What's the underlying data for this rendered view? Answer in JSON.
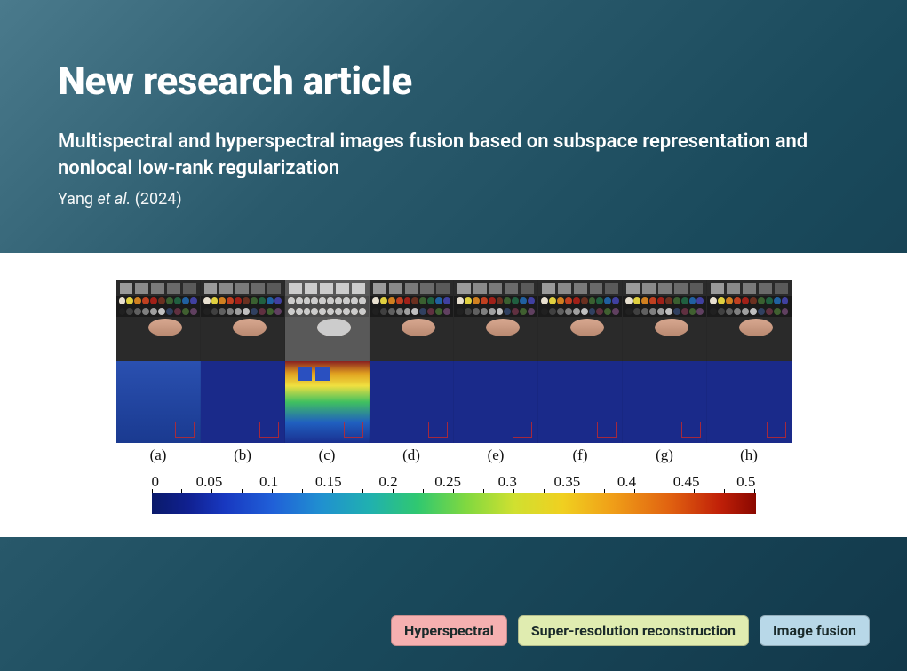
{
  "header": {
    "label": "New research article",
    "title": "Multispectral and hyperspectral images fusion based on subspace representation and nonlocal low-rank regularization",
    "authors_lead": "Yang",
    "authors_rest": "et al.",
    "year": "(2024)"
  },
  "figure": {
    "columns": 8,
    "sub_labels": [
      "(a)",
      "(b)",
      "(c)",
      "(d)",
      "(e)",
      "(f)",
      "(g)",
      "(h)"
    ],
    "top_row": {
      "gray_squares": [
        "#9a9a9a",
        "#8a8a8a",
        "#7a7a7a",
        "#6a6a6a",
        "#5a5a5a"
      ],
      "palette_top": [
        "#e8e0d0",
        "#e0d040",
        "#d08020",
        "#c04020",
        "#a02018",
        "#6a3020",
        "#3a6030",
        "#206040",
        "#2060a0",
        "#4040a0"
      ],
      "palette_bot": [
        "#202020",
        "#404040",
        "#606060",
        "#808080",
        "#a0a0a0",
        "#c0c0c0",
        "#304060",
        "#603040",
        "#406030",
        "#604060"
      ],
      "oval_color": "#d8a890",
      "bg": "#2a2a2a",
      "variant_c_washed": true
    },
    "bottom_row": {
      "base_color": "#1a2a8a",
      "variants": [
        "noise",
        "plain",
        "thermal",
        "plain",
        "plain",
        "plain",
        "plain",
        "plain"
      ],
      "marker_border": "#c83028"
    },
    "colorbar": {
      "ticks": [
        "0",
        "0.05",
        "0.1",
        "0.15",
        "0.2",
        "0.25",
        "0.3",
        "0.35",
        "0.4",
        "0.45",
        "0.5"
      ],
      "gradient_stops": [
        "#0a1a6a",
        "#1838c0",
        "#2090d0",
        "#30c870",
        "#d0e030",
        "#f0a018",
        "#c02008",
        "#8a0800"
      ]
    }
  },
  "tags": [
    {
      "label": "Hyperspectral",
      "bg": "#f5b0b0"
    },
    {
      "label": "Super-resolution reconstruction",
      "bg": "#e0ecb0"
    },
    {
      "label": "Image fusion",
      "bg": "#b8d8e8"
    }
  ]
}
